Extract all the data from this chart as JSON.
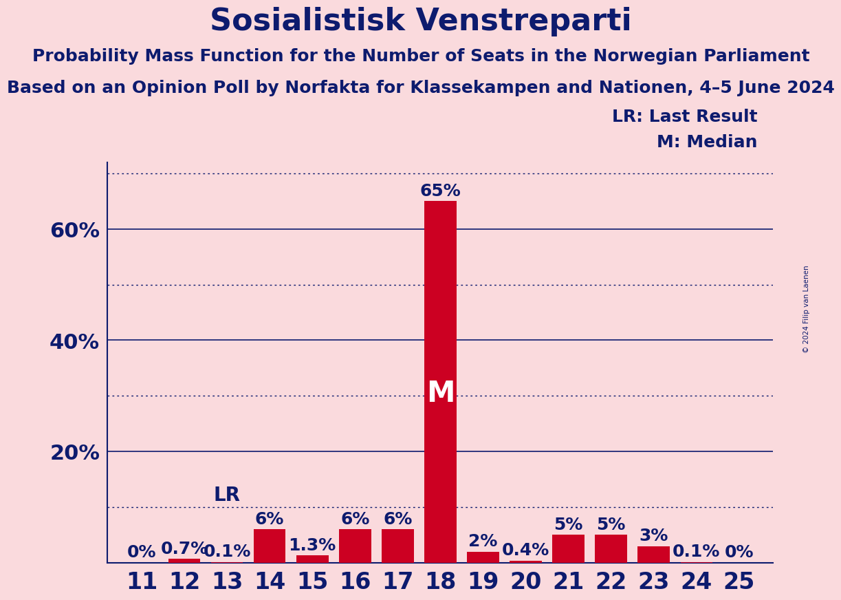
{
  "title": "Sosialistisk Venstreparti",
  "subtitle1": "Probability Mass Function for the Number of Seats in the Norwegian Parliament",
  "subtitle2": "Based on an Opinion Poll by Norfakta for Klassekampen and Nationen, 4–5 June 2024",
  "copyright": "© 2024 Filip van Laenen",
  "legend_lr": "LR: Last Result",
  "legend_m": "M: Median",
  "seats": [
    11,
    12,
    13,
    14,
    15,
    16,
    17,
    18,
    19,
    20,
    21,
    22,
    23,
    24,
    25
  ],
  "probabilities": [
    0.0,
    0.7,
    0.1,
    6.0,
    1.3,
    6.0,
    6.0,
    65.0,
    2.0,
    0.4,
    5.0,
    5.0,
    3.0,
    0.1,
    0.0
  ],
  "labels": [
    "0%",
    "0.7%",
    "0.1%",
    "6%",
    "1.3%",
    "6%",
    "6%",
    "65%",
    "2%",
    "0.4%",
    "5%",
    "5%",
    "3%",
    "0.1%",
    "0%"
  ],
  "median_seat": 18,
  "lr_seat": 13,
  "bar_color": "#cc0022",
  "background_color": "#fadadd",
  "text_color": "#0d1b6e",
  "title_fontsize": 32,
  "subtitle_fontsize": 18,
  "ytick_fontsize": 22,
  "xtick_fontsize": 24,
  "label_fontsize": 18,
  "lr_label_fontsize": 20,
  "ylim": [
    0,
    72
  ],
  "yticks": [
    20,
    40,
    60
  ],
  "solid_lines": [
    20,
    40,
    60
  ],
  "dotted_lines": [
    10,
    30,
    50,
    70
  ]
}
